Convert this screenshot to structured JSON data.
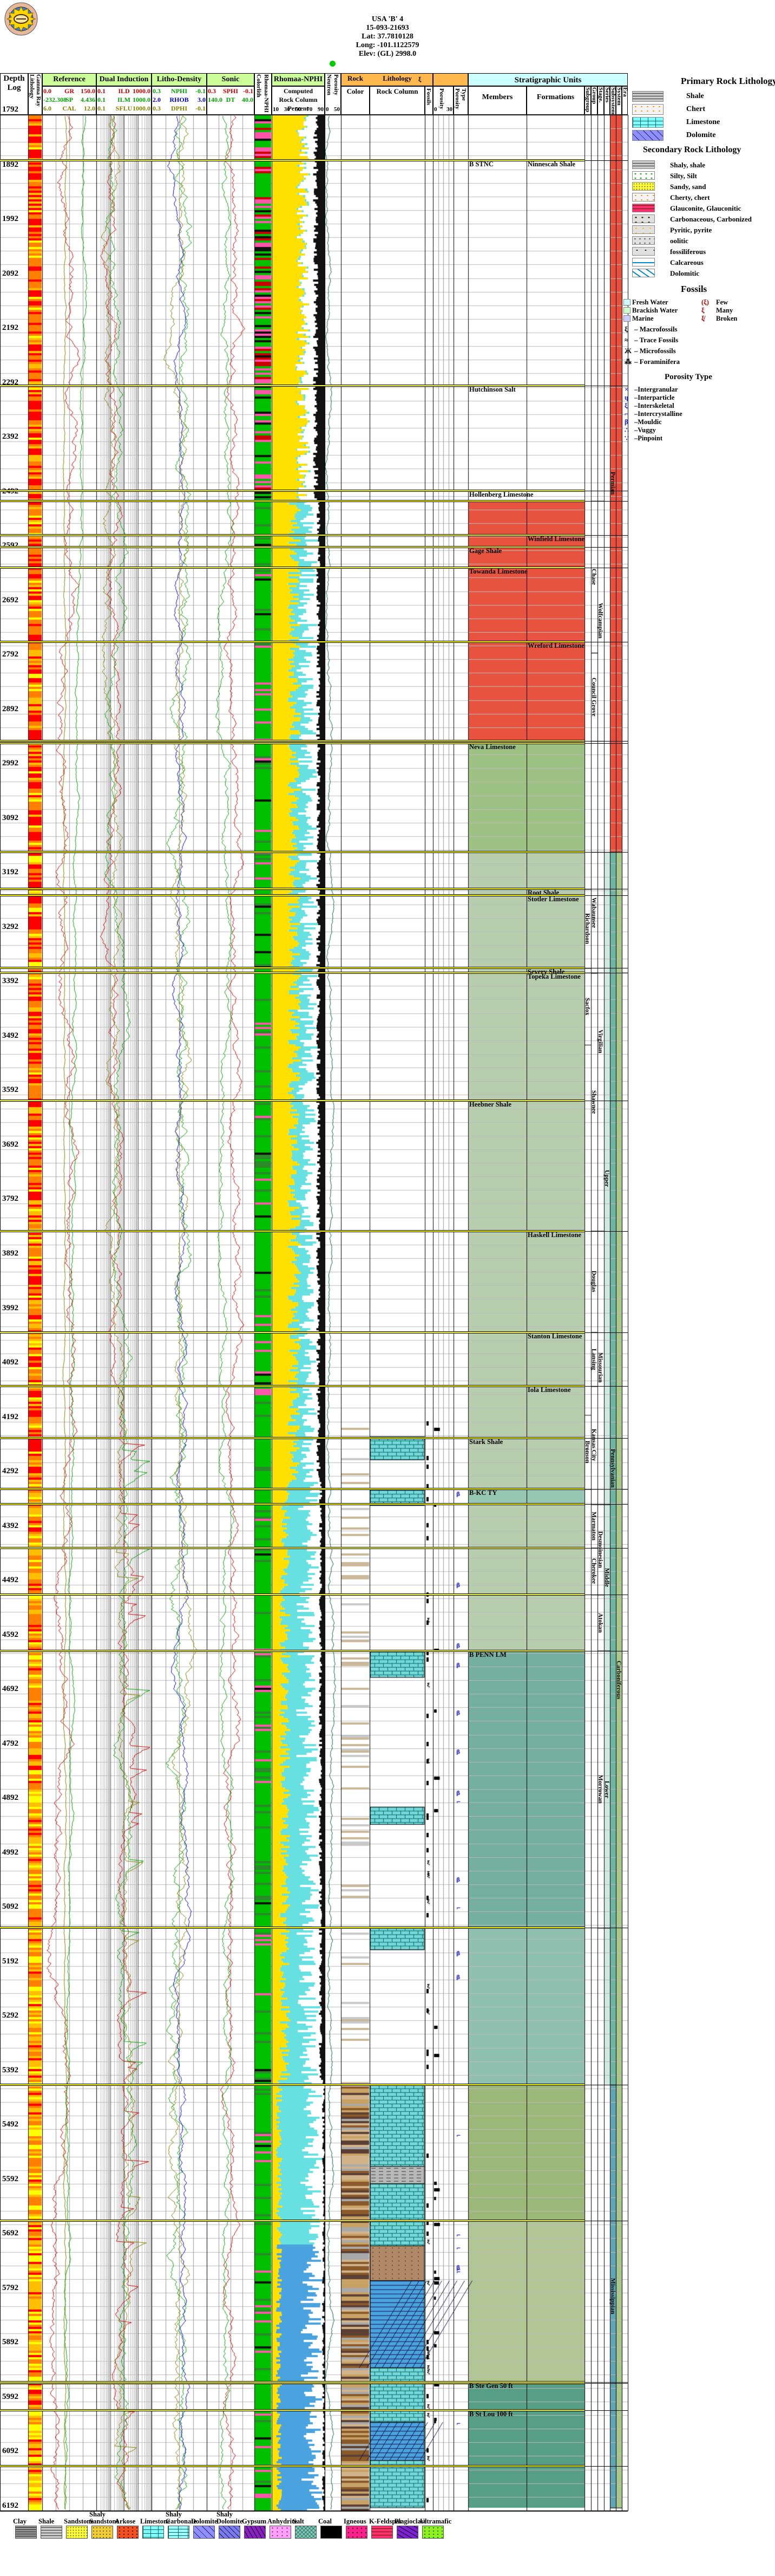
{
  "header": {
    "title_lines": [
      "USA 'B' 4",
      "15-093-21693",
      "Lat: 37.7810128",
      "Long: -101.1122579",
      "Elev: (GL) 2998.0"
    ],
    "logo": "kansas-geological-survey-seal",
    "depth_col_label": "Depth Log",
    "first_depth_label": "1792",
    "gamma_col_labels": [
      "Lithology",
      "Gamma Ray"
    ],
    "colorlith_labels": [
      "Colorlith",
      "Rhomaa-NPHI"
    ],
    "strat_header": "Stratigraphic Units",
    "strat_cols": [
      "Members",
      "Formations",
      "Subgroup",
      "Group",
      "Stage.",
      "Series",
      "Subsystem",
      "System",
      "Era"
    ]
  },
  "chart_data": {
    "type": "well-log",
    "depth_top_ft": 1792,
    "depth_bottom_ft": 6192,
    "depth_label_step_ft": 100,
    "tracks": [
      {
        "name": "Reference",
        "curves": [
          {
            "name": "GR",
            "min": "0.0",
            "max": "150.0",
            "color": "#cc0000"
          },
          {
            "name": "SP",
            "min": "-232.308",
            "max": "4.436",
            "color": "#00a000"
          },
          {
            "name": "CAL",
            "min": "6.0",
            "max": "12.0",
            "color": "#808000"
          }
        ]
      },
      {
        "name": "Dual Induction",
        "curves": [
          {
            "name": "ILD",
            "min": "0.1",
            "max": "1000.0",
            "color": "#cc0000"
          },
          {
            "name": "ILM",
            "min": "0.1",
            "max": "1000.0",
            "color": "#00a000"
          },
          {
            "name": "SFLU",
            "min": "0.1",
            "max": "1000.0",
            "color": "#808000"
          }
        ]
      },
      {
        "name": "Litho-Density",
        "curves": [
          {
            "name": "NPHI",
            "min": "0.3",
            "max": "-0.1",
            "color": "#00a000"
          },
          {
            "name": "RHOB",
            "min": "2.0",
            "max": "3.0",
            "color": "#0000cc"
          },
          {
            "name": "DPHI",
            "min": "0.3",
            "max": "-0.1",
            "color": "#808000"
          }
        ]
      },
      {
        "name": "Sonic",
        "curves": [
          {
            "name": "SPHI",
            "min": "0.3",
            "max": "-0.1",
            "color": "#cc0000"
          },
          {
            "name": "DT",
            "min": "140.0",
            "max": "40.0",
            "color": "#00a000"
          }
        ]
      },
      {
        "name": "Rhomaa-NPHI",
        "subtitle_lines": [
          "Computed",
          "Rock Column",
          "Percent"
        ],
        "scale_ticks": [
          "10",
          "30",
          "50",
          "70",
          "90"
        ]
      },
      {
        "name": "Neutron Porosity",
        "scale_ticks": [
          "0",
          "50"
        ]
      },
      {
        "name": "Rock Color"
      },
      {
        "name": "Lithology Rock Column"
      },
      {
        "name": "Fossils"
      },
      {
        "name": "Porosity",
        "scale_ticks": [
          "0",
          "30"
        ]
      },
      {
        "name": "Porosity Type"
      }
    ],
    "tops": [
      {
        "ft": 1876,
        "member": "B STNC",
        "formation": "Ninnescah Shale"
      },
      {
        "ft": 2289,
        "member": "Hutchinson Salt",
        "formation": ""
      },
      {
        "ft": 2482,
        "member": "Hollenberg Limestone",
        "formation": ""
      },
      {
        "ft": 2564,
        "member": "",
        "formation": "Winfield Limestone"
      },
      {
        "ft": 2586,
        "member": "Gage Shale",
        "formation": ""
      },
      {
        "ft": 2624,
        "member": "Towanda Limestone",
        "formation": ""
      },
      {
        "ft": 2760,
        "member": "",
        "formation": "Wreford Limestone"
      },
      {
        "ft": 2946,
        "member": "Neva Limestone",
        "formation": ""
      },
      {
        "ft": 3214,
        "member": "",
        "formation": "Root Shale"
      },
      {
        "ft": 3226,
        "member": "",
        "formation": "Stotler Limestone"
      },
      {
        "ft": 3359,
        "member": "",
        "formation": "Severy Shale"
      },
      {
        "ft": 3368,
        "member": "",
        "formation": "Topeka Limestone"
      },
      {
        "ft": 3603,
        "member": "Heebner Shale",
        "formation": ""
      },
      {
        "ft": 3842,
        "member": "",
        "formation": "Haskell Limestone"
      },
      {
        "ft": 4028,
        "member": "",
        "formation": "Stanton Limestone"
      },
      {
        "ft": 4127,
        "member": "",
        "formation": "Iola Limestone"
      },
      {
        "ft": 4222,
        "member": "Stark Shale",
        "formation": ""
      },
      {
        "ft": 4316,
        "member": "B-KC TY",
        "formation": ""
      },
      {
        "ft": 4613,
        "member": "B PENN LM",
        "formation": ""
      },
      {
        "ft": 5956,
        "member": "B Ste Gen 50 ft",
        "formation": ""
      },
      {
        "ft": 6008,
        "member": "B St Lou 100 ft",
        "formation": ""
      }
    ],
    "extra_boundaries_ft": [
      2501,
      2942,
      3146,
      4344,
      4424,
      4510,
      5122,
      5410,
      5660,
      5958,
      6110
    ],
    "units": {
      "subgroups": [
        {
          "name": "Richardson",
          "from": 3214,
          "to": 3359
        },
        {
          "name": "Sacfox",
          "from": 3359,
          "to": 3500
        },
        {
          "name": "Bronson",
          "from": 4180,
          "to": 4316
        }
      ],
      "groups": [
        {
          "name": "Chase",
          "from": 2501,
          "to": 2780
        },
        {
          "name": "Council Grove",
          "from": 2780,
          "to": 2942
        },
        {
          "name": "Wabaunsee",
          "from": 3146,
          "to": 3368
        },
        {
          "name": "Shawnee",
          "from": 3368,
          "to": 3842
        },
        {
          "name": "Douglas",
          "from": 3842,
          "to": 4028
        },
        {
          "name": "Lansing",
          "from": 4028,
          "to": 4127
        },
        {
          "name": "Kansas City",
          "from": 4127,
          "to": 4344
        },
        {
          "name": "Marmaton",
          "from": 4344,
          "to": 4424
        },
        {
          "name": "Cherokee",
          "from": 4424,
          "to": 4510
        }
      ],
      "stages": [
        {
          "name": "Wolfcampian",
          "from": 2501,
          "to": 2942
        },
        {
          "name": "Virgilian",
          "from": 3146,
          "to": 3842
        },
        {
          "name": "Missourian",
          "from": 3842,
          "to": 4344
        },
        {
          "name": "Desmoinesian",
          "from": 4344,
          "to": 4510
        },
        {
          "name": "Atokan",
          "from": 4510,
          "to": 4613
        },
        {
          "name": "Morrowan",
          "from": 4613,
          "to": 5122
        }
      ],
      "series": [
        {
          "name": "Upper",
          "from": 3146,
          "to": 4344
        },
        {
          "name": "Middle",
          "from": 4344,
          "to": 4613
        },
        {
          "name": "Lower",
          "from": 4613,
          "to": 5122
        }
      ],
      "subsystems": [
        {
          "name": "Permian",
          "from": 1792,
          "to": 3146,
          "color": "#e8503c"
        },
        {
          "name": "Pennsylvanian",
          "from": 3146,
          "to": 5410,
          "color": "#6fb5a5"
        },
        {
          "name": "Mississippian",
          "from": 5410,
          "to": 6187,
          "color": "#5fa5b5"
        }
      ],
      "systems": [
        {
          "name": "Permian",
          "from": 1792,
          "to": 3146,
          "color": "#e8503c"
        },
        {
          "name": "Carboniferous",
          "from": 3146,
          "to": 6187,
          "color": "#a8c88a"
        }
      ]
    },
    "area_fills": [
      {
        "from": 2501,
        "to": 2942,
        "color": "#e8533f"
      },
      {
        "from": 2942,
        "to": 3146,
        "color": "#9dc183"
      },
      {
        "from": 3146,
        "to": 4314,
        "color": "#b8ccae"
      },
      {
        "from": 4314,
        "to": 4344,
        "color": "#96c6b4"
      },
      {
        "from": 4344,
        "to": 4613,
        "color": "#b8ccae"
      },
      {
        "from": 4613,
        "to": 5122,
        "color": "#74af9f"
      },
      {
        "from": 5122,
        "to": 5410,
        "color": "#8fbfae"
      },
      {
        "from": 5410,
        "to": 5660,
        "color": "#9cb878"
      },
      {
        "from": 5660,
        "to": 5958,
        "color": "#b2c695"
      },
      {
        "from": 5958,
        "to": 6187,
        "color": "#579e87"
      }
    ],
    "lithology_intervals": [
      {
        "from": 4220,
        "to": 4262,
        "type": "limestone"
      },
      {
        "from": 4318,
        "to": 4346,
        "type": "limestone"
      },
      {
        "from": 4615,
        "to": 4662,
        "type": "limestone"
      },
      {
        "from": 4900,
        "to": 4932,
        "type": "limestone"
      },
      {
        "from": 5120,
        "to": 5162,
        "type": "limestone"
      },
      {
        "from": 5410,
        "to": 5560,
        "type": "limestone"
      },
      {
        "from": 5560,
        "to": 5592,
        "type": "shale"
      },
      {
        "from": 5592,
        "to": 5706,
        "type": "limestone"
      },
      {
        "from": 5706,
        "to": 5770,
        "type": "siltstone"
      },
      {
        "from": 5770,
        "to": 5930,
        "type": "dolomite"
      },
      {
        "from": 5930,
        "to": 6030,
        "type": "limestone"
      },
      {
        "from": 6030,
        "to": 6100,
        "type": "dolomite"
      },
      {
        "from": 6100,
        "to": 6187,
        "type": "limestone"
      }
    ]
  },
  "legend_right": {
    "primary_title": "Primary Rock Lithology",
    "primary": [
      {
        "label": "Shale",
        "pattern": "shale"
      },
      {
        "label": "Chert",
        "pattern": "chert"
      },
      {
        "label": "Limestone",
        "pattern": "ls"
      },
      {
        "label": "Dolomite",
        "pattern": "dol"
      }
    ],
    "secondary_title": "Secondary Rock Lithology",
    "secondary": [
      {
        "label": "Shaly, shale",
        "pattern": "shale"
      },
      {
        "label": "Silty, Silt",
        "pattern": "silt"
      },
      {
        "label": "Sandy, sand",
        "pattern": "ss"
      },
      {
        "label": "Cherty, chert",
        "pattern": "chert"
      },
      {
        "label": "Glauconite, Glauconitic",
        "pattern": "kfs"
      },
      {
        "label": "Carbonaceous, Carbonized",
        "pattern": "carb"
      },
      {
        "label": "Pyritic, pyrite",
        "pattern": "pyr"
      },
      {
        "label": "oolitic",
        "pattern": "oo"
      },
      {
        "label": "fossiliferous",
        "pattern": "fos"
      },
      {
        "label": "Calcareous",
        "pattern": "calc"
      },
      {
        "label": "Dolomitic",
        "pattern": "dolm"
      }
    ],
    "fossils_title": "Fossils",
    "fossil_water": [
      {
        "label": "Fresh Water",
        "pattern": "fw"
      },
      {
        "label": "Brackish Water",
        "pattern": "bw"
      },
      {
        "label": "Marine",
        "pattern": "ma"
      }
    ],
    "fossil_abundance": [
      {
        "glyph": "(ξ)",
        "label": "Few"
      },
      {
        "glyph": "ξ",
        "label": "Many"
      },
      {
        "glyph": "ξ̸",
        "label": "Broken"
      }
    ],
    "fossil_types": [
      {
        "glyph": "ξ",
        "label": "Macrofossils"
      },
      {
        "glyph": "≈",
        "label": "Trace Fossils"
      },
      {
        "glyph": "Ж",
        "label": "Microfossils"
      },
      {
        "glyph": "⁂",
        "label": "Foraminifera"
      }
    ],
    "porosity_title": "Porosity Type",
    "porosity_types": [
      {
        "glyph": "×",
        "label": "Intergranular"
      },
      {
        "glyph": "ɥ",
        "label": "Interparticle"
      },
      {
        "glyph": "ξ",
        "label": "Interskeletal"
      },
      {
        "glyph": "⌐",
        "label": "Intercrystalline"
      },
      {
        "glyph": "β",
        "label": "Mouldic"
      },
      {
        "glyph": "∴",
        "label": "Vuggy"
      },
      {
        "glyph": "∵",
        "label": "Pinpoint"
      }
    ]
  },
  "legend_bottom": [
    {
      "label": "Clay",
      "pattern": "clay"
    },
    {
      "label": "Shale",
      "pattern": "shale"
    },
    {
      "label": "Sandstone",
      "pattern": "ss"
    },
    {
      "label": "Shaly\nSandstone",
      "pattern": "shss"
    },
    {
      "label": "Arkose",
      "pattern": "ark"
    },
    {
      "label": "Limestone",
      "pattern": "ls"
    },
    {
      "label": "Shaly\nCarbonate",
      "pattern": "shcarb"
    },
    {
      "label": "Dolomite",
      "pattern": "dol"
    },
    {
      "label": "Shaly\nDolomite",
      "pattern": "shdol"
    },
    {
      "label": "Gypsum",
      "pattern": "gyp"
    },
    {
      "label": "Anhydrite",
      "pattern": "anh"
    },
    {
      "label": "Salt",
      "pattern": "salt"
    },
    {
      "label": "Coal",
      "pattern": "coal"
    },
    {
      "label": "Igneous",
      "pattern": "ign"
    },
    {
      "label": "K-Feldspar",
      "pattern": "kfs"
    },
    {
      "label": "Plagioclase",
      "pattern": "plg"
    },
    {
      "label": "Ultramafic",
      "pattern": "ult"
    }
  ],
  "colors": {
    "header_green": "#ccff99",
    "header_orange": "#ffb84d",
    "header_cyan": "#ccffff",
    "boundary_yellow": "#ffff00",
    "gr_strip": [
      "#ff0000",
      "#ff8000",
      "#ffbf00",
      "#ffff00"
    ],
    "colorlith_green": "#00c000",
    "status_dot_green": "#00cc00"
  }
}
